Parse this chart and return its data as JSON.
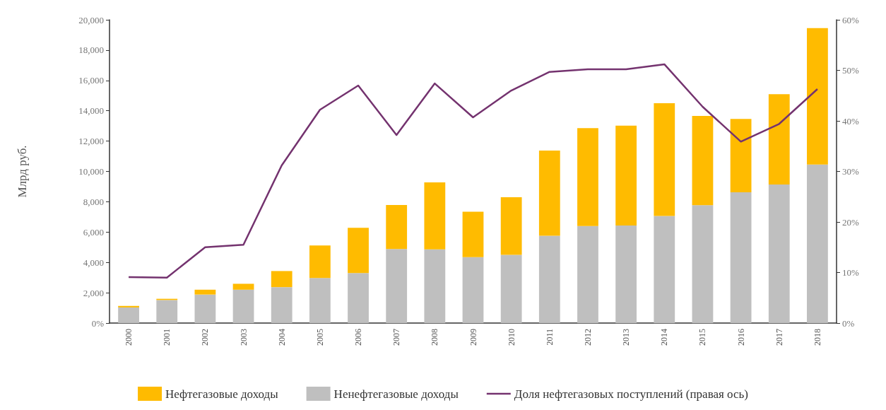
{
  "chart_data": {
    "type": "bar",
    "stacked": true,
    "ylabel": "Млрд руб.",
    "categories": [
      "2000",
      "2001",
      "2002",
      "2003",
      "2004",
      "2005",
      "2006",
      "2007",
      "2008",
      "2009",
      "2010",
      "2011",
      "2012",
      "2013",
      "2014",
      "2015",
      "2016",
      "2017",
      "2018"
    ],
    "series": [
      {
        "name": "Ненефтегазовые доходы",
        "color": "#bfbfbf",
        "values": [
          1030,
          1520,
          1880,
          2200,
          2370,
          2970,
          3300,
          4880,
          4860,
          4350,
          4500,
          5760,
          6400,
          6430,
          7060,
          7770,
          8620,
          9140,
          10460
        ]
      },
      {
        "name": "Нефтегазовые доходы",
        "color": "#ffbb00",
        "values": [
          100,
          80,
          320,
          390,
          1060,
          2150,
          2980,
          2900,
          4420,
          2990,
          3800,
          5610,
          6450,
          6590,
          7440,
          5890,
          4840,
          5950,
          8990
        ]
      },
      {
        "name": "Доля нефтегазовых поступлений (правая ось)",
        "type": "line",
        "axis": "y2",
        "color": "#74336f",
        "values": [
          9.1,
          9.0,
          15.0,
          15.5,
          31.2,
          42.2,
          47.0,
          37.2,
          47.4,
          40.7,
          46.0,
          49.7,
          50.2,
          50.2,
          51.2,
          42.8,
          35.9,
          39.4,
          46.3
        ]
      }
    ],
    "ylim": [
      0,
      20000
    ],
    "yticks": [
      {
        "value": 0,
        "label": "0%"
      },
      {
        "value": 2000,
        "label": "2,000"
      },
      {
        "value": 4000,
        "label": "4,000"
      },
      {
        "value": 6000,
        "label": "6,000"
      },
      {
        "value": 8000,
        "label": "8,000"
      },
      {
        "value": 10000,
        "label": "10,000"
      },
      {
        "value": 12000,
        "label": "12,000"
      },
      {
        "value": 14000,
        "label": "14,000"
      },
      {
        "value": 16000,
        "label": "16,000"
      },
      {
        "value": 18000,
        "label": "18,000"
      },
      {
        "value": 20000,
        "label": "20,000"
      }
    ],
    "y2lim": [
      0,
      60
    ],
    "y2ticks": [
      {
        "value": 0,
        "label": "0%"
      },
      {
        "value": 10,
        "label": "10%"
      },
      {
        "value": 20,
        "label": "20%"
      },
      {
        "value": 30,
        "label": "30%"
      },
      {
        "value": 40,
        "label": "40%"
      },
      {
        "value": 50,
        "label": "50%"
      },
      {
        "value": 60,
        "label": "60%"
      }
    ],
    "legend": "bottom",
    "grid": false,
    "marker": "none"
  }
}
